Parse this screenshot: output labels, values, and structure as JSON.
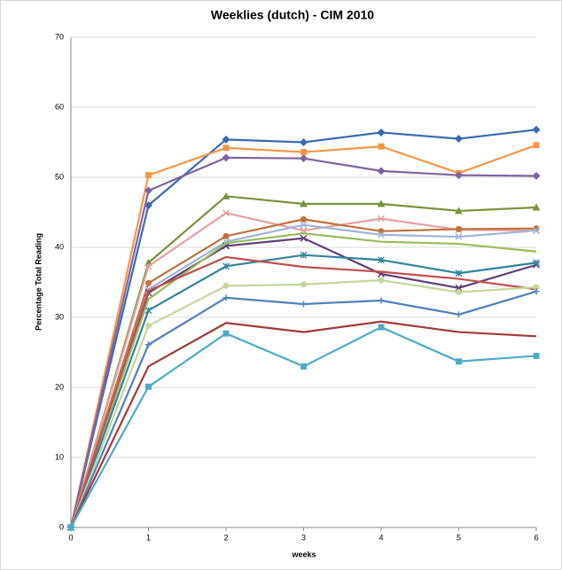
{
  "chart_data": {
    "type": "line",
    "title": "Weeklies (dutch) - CIM 2010",
    "x_label": "weeks",
    "y_label": "Percentage Total Reading",
    "x": [
      0,
      1,
      2,
      3,
      4,
      5,
      6
    ],
    "xlim": [
      0,
      6
    ],
    "xticks": [
      0,
      1,
      2,
      3,
      4,
      5,
      6
    ],
    "ylim": [
      0,
      70
    ],
    "yticks": [
      0,
      10,
      20,
      30,
      40,
      50,
      60,
      70
    ],
    "grid": true,
    "series": [
      {
        "color": "#3a6bb5",
        "marker": "diamond",
        "values": [
          0,
          46,
          55.4,
          55,
          56.4,
          55.5,
          56.8
        ]
      },
      {
        "color": "#f79646",
        "marker": "square",
        "values": [
          0,
          50.3,
          54.2,
          53.6,
          54.4,
          50.6,
          54.6
        ]
      },
      {
        "color": "#8064a2",
        "marker": "diamond",
        "values": [
          0,
          48.1,
          52.8,
          52.7,
          50.9,
          50.3,
          50.2
        ]
      },
      {
        "color": "#77933c",
        "marker": "triangle",
        "values": [
          0,
          37.8,
          47.3,
          46.2,
          46.2,
          45.2,
          45.7
        ]
      },
      {
        "color": "#e6a0a0",
        "marker": "x",
        "values": [
          0,
          37.3,
          44.9,
          42.4,
          44.1,
          42.5,
          42.4
        ]
      },
      {
        "color": "#c0703a",
        "marker": "circle",
        "values": [
          0,
          34.9,
          41.6,
          44,
          42.3,
          42.6,
          42.7
        ]
      },
      {
        "color": "#a0b4d8",
        "marker": "x",
        "values": [
          0,
          34,
          40.8,
          43.2,
          41.8,
          41.5,
          42.4
        ]
      },
      {
        "color": "#5f3f78",
        "marker": "x",
        "values": [
          0,
          33.5,
          40.2,
          41.3,
          36.2,
          34.2,
          37.5
        ]
      },
      {
        "color": "#9bbb59",
        "marker": "none",
        "values": [
          0,
          32.6,
          40.6,
          42,
          40.8,
          40.5,
          39.4
        ]
      },
      {
        "color": "#31859c",
        "marker": "star",
        "values": [
          0,
          31,
          37.3,
          38.9,
          38.2,
          36.3,
          37.8
        ]
      },
      {
        "color": "#c0504d",
        "marker": "none",
        "values": [
          0,
          33.8,
          38.6,
          37.2,
          36.5,
          35.5,
          34
        ]
      },
      {
        "color": "#c3d69b",
        "marker": "circle",
        "values": [
          0,
          28.8,
          34.5,
          34.7,
          35.3,
          33.6,
          34.3
        ]
      },
      {
        "color": "#4f81bd",
        "marker": "plus",
        "values": [
          0,
          26.1,
          32.8,
          31.9,
          32.4,
          30.4,
          33.7
        ]
      },
      {
        "color": "#a03a36",
        "marker": "none",
        "values": [
          0,
          23,
          29.2,
          27.9,
          29.4,
          27.9,
          27.3
        ]
      },
      {
        "color": "#4bacc6",
        "marker": "square",
        "values": [
          0,
          20.1,
          27.7,
          23,
          28.6,
          23.7,
          24.5
        ]
      }
    ]
  }
}
